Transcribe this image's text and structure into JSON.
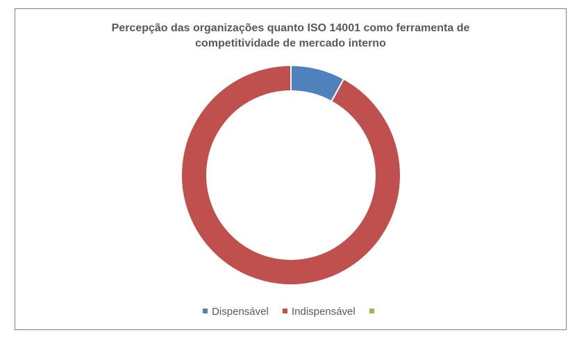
{
  "chart_data": {
    "type": "pie",
    "subtype": "donut",
    "title_lines": [
      "Percepção das organizações quanto ISO 14001 como ferramenta de",
      "competitividade de mercado interno"
    ],
    "categories": [
      "Dispensável",
      "Indispensável",
      ""
    ],
    "values": [
      8,
      92,
      0
    ],
    "colors": [
      "#4f81bd",
      "#c0504d",
      "#9bbb59"
    ],
    "legend_position": "bottom"
  }
}
